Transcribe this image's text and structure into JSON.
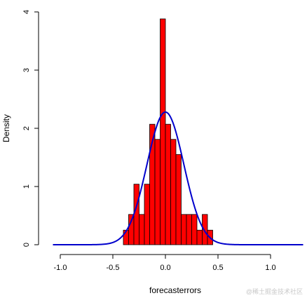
{
  "chart_data": {
    "type": "bar",
    "title": "",
    "xlabel": "forecasterrors",
    "ylabel": "Density",
    "xlim": [
      -1.1,
      1.3
    ],
    "ylim": [
      0,
      4
    ],
    "xticks": [
      -1.0,
      -0.5,
      0.0,
      0.5,
      1.0
    ],
    "xtick_labels": [
      "-1.0",
      "-0.5",
      "0.0",
      "0.5",
      "1.0"
    ],
    "yticks": [
      0,
      1,
      2,
      3,
      4
    ],
    "ytick_labels": [
      "0",
      "1",
      "2",
      "3",
      "4"
    ],
    "grid": false,
    "bar_color": "#ff0000",
    "curve_color": "#0000cc",
    "bin_width": 0.05,
    "bins": [
      {
        "x0": -0.4,
        "x1": -0.35,
        "density": 0.25
      },
      {
        "x0": -0.35,
        "x1": -0.3,
        "density": 0.52
      },
      {
        "x0": -0.3,
        "x1": -0.25,
        "density": 1.04
      },
      {
        "x0": -0.25,
        "x1": -0.2,
        "density": 0.52
      },
      {
        "x0": -0.2,
        "x1": -0.15,
        "density": 1.04
      },
      {
        "x0": -0.15,
        "x1": -0.1,
        "density": 2.07
      },
      {
        "x0": -0.1,
        "x1": -0.05,
        "density": 1.81
      },
      {
        "x0": -0.05,
        "x1": 0.0,
        "density": 3.88
      },
      {
        "x0": 0.0,
        "x1": 0.05,
        "density": 2.07
      },
      {
        "x0": 0.05,
        "x1": 0.1,
        "density": 1.81
      },
      {
        "x0": 0.1,
        "x1": 0.15,
        "density": 1.55
      },
      {
        "x0": 0.15,
        "x1": 0.2,
        "density": 0.52
      },
      {
        "x0": 0.2,
        "x1": 0.25,
        "density": 0.52
      },
      {
        "x0": 0.25,
        "x1": 0.3,
        "density": 0.52
      },
      {
        "x0": 0.3,
        "x1": 0.35,
        "density": 0.25
      },
      {
        "x0": 0.35,
        "x1": 0.4,
        "density": 0.52
      },
      {
        "x0": 0.4,
        "x1": 0.45,
        "density": 0.25
      }
    ],
    "normal_curve": {
      "mean": 0.0,
      "sd": 0.175,
      "x_range": [
        -1.07,
        1.31
      ]
    }
  },
  "watermark": "@稀土掘金技术社区"
}
